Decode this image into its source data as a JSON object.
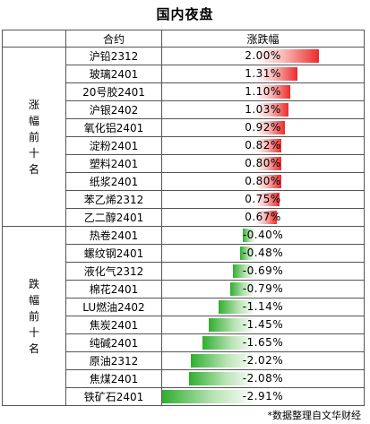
{
  "title": "国内夜盘",
  "header": {
    "contract": "合约",
    "change": "涨跌幅"
  },
  "sections": {
    "top": "涨幅前十名",
    "bottom": "跌幅前十名"
  },
  "chart_data": {
    "type": "table",
    "title": "国内夜盘",
    "columns": [
      "合约",
      "涨跌幅"
    ],
    "unit": "%",
    "groups": [
      {
        "name": "涨幅前十名",
        "rows": [
          {
            "name": "沪铅2312",
            "value": 2.0,
            "label": "2.00%"
          },
          {
            "name": "玻璃2401",
            "value": 1.31,
            "label": "1.31%"
          },
          {
            "name": "20号胶2401",
            "value": 1.1,
            "label": "1.10%"
          },
          {
            "name": "沪银2402",
            "value": 1.03,
            "label": "1.03%"
          },
          {
            "name": "氧化铝2401",
            "value": 0.92,
            "label": "0.92%"
          },
          {
            "name": "淀粉2401",
            "value": 0.82,
            "label": "0.82%"
          },
          {
            "name": "塑料2401",
            "value": 0.8,
            "label": "0.80%"
          },
          {
            "name": "纸浆2401",
            "value": 0.8,
            "label": "0.80%"
          },
          {
            "name": "苯乙烯2312",
            "value": 0.75,
            "label": "0.75%"
          },
          {
            "name": "乙二醇2401",
            "value": 0.67,
            "label": "0.67%"
          }
        ]
      },
      {
        "name": "跌幅前十名",
        "rows": [
          {
            "name": "热卷2401",
            "value": -0.4,
            "label": "-0.40%"
          },
          {
            "name": "螺纹钢2401",
            "value": -0.48,
            "label": "-0.48%"
          },
          {
            "name": "液化气2312",
            "value": -0.69,
            "label": "-0.69%"
          },
          {
            "name": "棉花2401",
            "value": -0.79,
            "label": "-0.79%"
          },
          {
            "name": "LU燃油2402",
            "value": -1.14,
            "label": "-1.14%"
          },
          {
            "name": "焦炭2401",
            "value": -1.45,
            "label": "-1.45%"
          },
          {
            "name": "纯碱2401",
            "value": -1.65,
            "label": "-1.65%"
          },
          {
            "name": "原油2312",
            "value": -2.02,
            "label": "-2.02%"
          },
          {
            "name": "焦煤2401",
            "value": -2.08,
            "label": "-2.08%"
          },
          {
            "name": "铁矿石2401",
            "value": -2.91,
            "label": "-2.91%"
          }
        ]
      }
    ]
  },
  "footer": "*数据整理自文华财经"
}
